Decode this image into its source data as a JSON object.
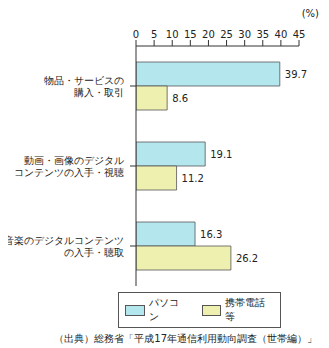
{
  "chart_data": {
    "type": "bar",
    "orientation": "horizontal",
    "xlabel": "(%)",
    "source": "（出典）総務省「平成17年通信利用動向調査（世帯編）」",
    "categories": [
      "物品・サービスの\n購入・取引",
      "動画・画像のデジタル\nコンテンツの入手・視聴",
      "音楽のデジタルコンテンツ\nの入手・聴取"
    ],
    "series": [
      {
        "name": "パソコン",
        "color": "#b4e6ee",
        "values": [
          39.7,
          19.1,
          16.3
        ]
      },
      {
        "name": "携帯電話等",
        "color": "#eef0b0",
        "values": [
          8.6,
          11.2,
          26.2
        ]
      }
    ],
    "xlim": [
      0,
      45
    ],
    "xticks": [
      0,
      5,
      10,
      15,
      20,
      25,
      30,
      35,
      40,
      45
    ],
    "grid": false,
    "legend": "bottom",
    "data_labels": true
  }
}
